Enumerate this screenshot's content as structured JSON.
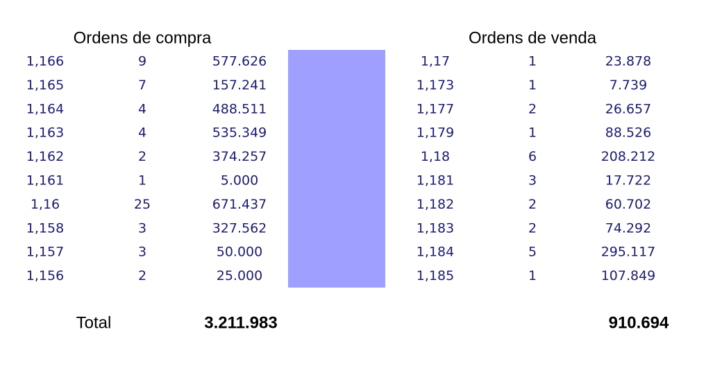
{
  "buy": {
    "title": "Ordens de compra",
    "rows": [
      [
        "1,166",
        "9",
        "577.626"
      ],
      [
        "1,165",
        "7",
        "157.241"
      ],
      [
        "1,164",
        "4",
        "488.511"
      ],
      [
        "1,163",
        "4",
        "535.349"
      ],
      [
        "1,162",
        "2",
        "374.257"
      ],
      [
        "1,161",
        "1",
        "5.000"
      ],
      [
        "1,16",
        "25",
        "671.437"
      ],
      [
        "1,158",
        "3",
        "327.562"
      ],
      [
        "1,157",
        "3",
        "50.000"
      ],
      [
        "1,156",
        "2",
        "25.000"
      ]
    ],
    "total_label": "Total",
    "total": "3.211.983"
  },
  "sell": {
    "title": "Ordens de venda",
    "rows": [
      [
        "1,17",
        "1",
        "23.878"
      ],
      [
        "1,173",
        "1",
        "7.739"
      ],
      [
        "1,177",
        "2",
        "26.657"
      ],
      [
        "1,179",
        "1",
        "88.526"
      ],
      [
        "1,18",
        "6",
        "208.212"
      ],
      [
        "1,181",
        "3",
        "17.722"
      ],
      [
        "1,182",
        "2",
        "60.702"
      ],
      [
        "1,183",
        "2",
        "74.292"
      ],
      [
        "1,184",
        "5",
        "295.117"
      ],
      [
        "1,185",
        "1",
        "107.849"
      ]
    ],
    "total": "910.694"
  }
}
